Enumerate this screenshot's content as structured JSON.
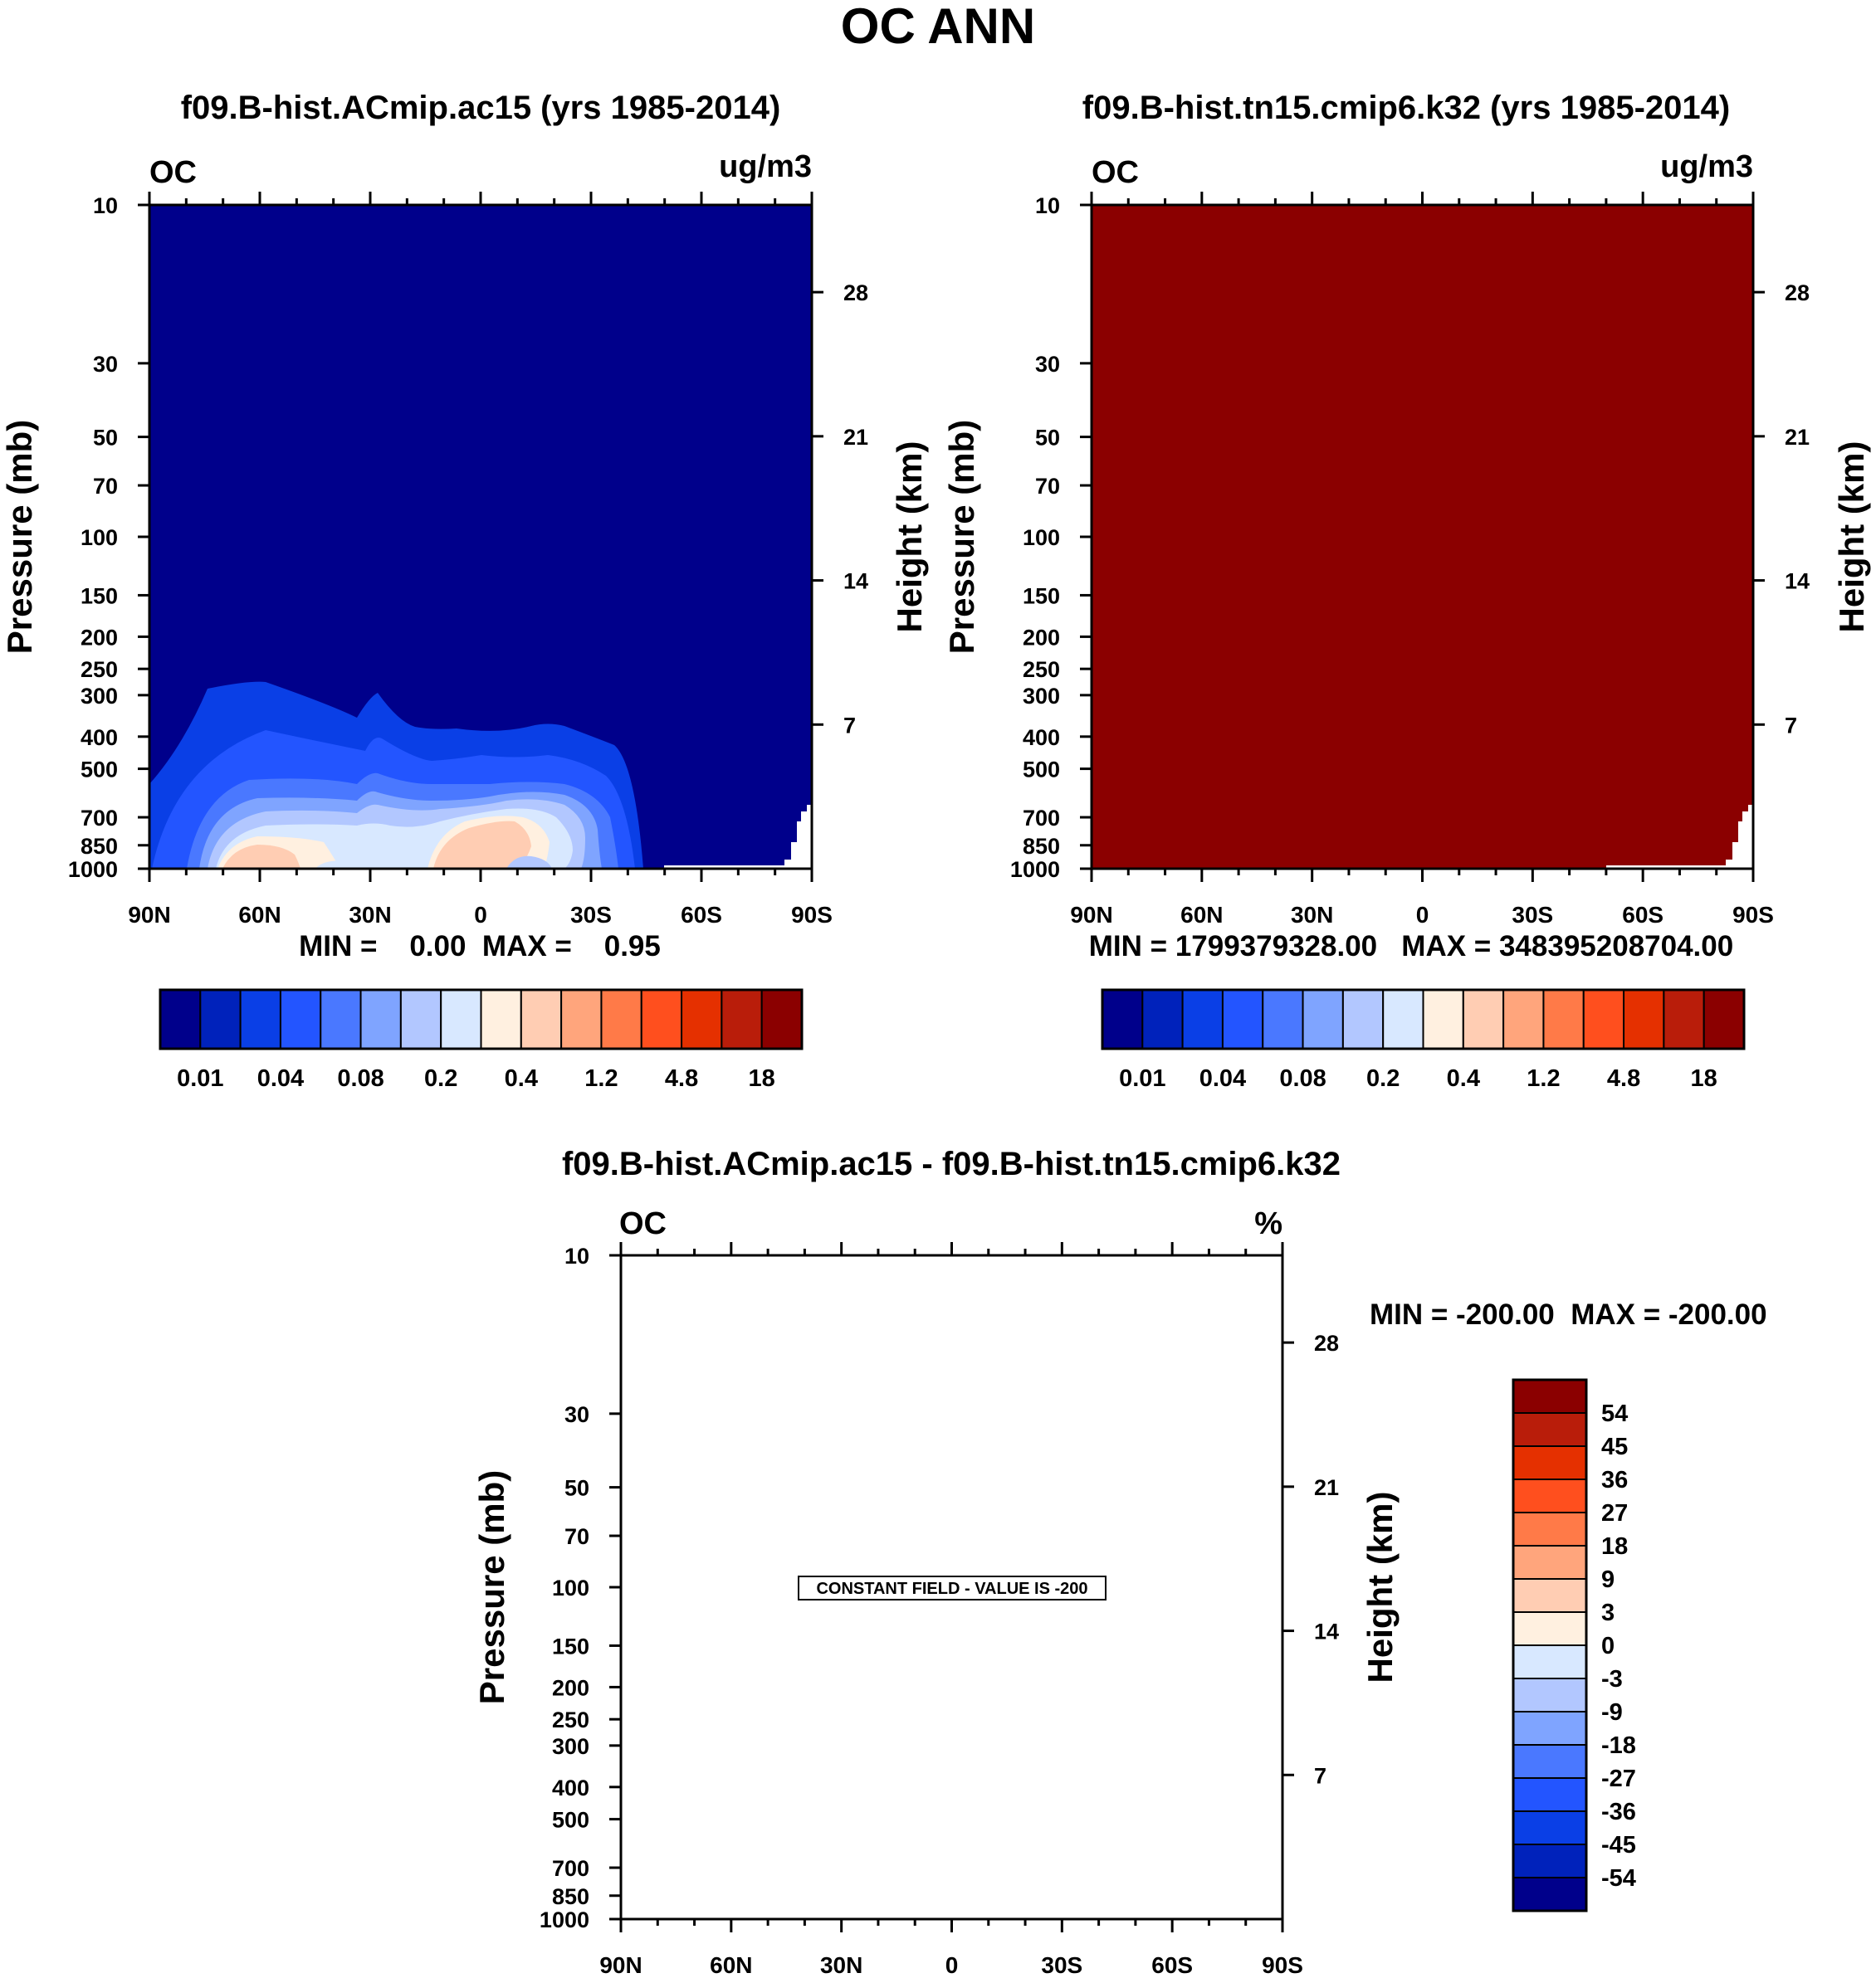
{
  "figure_title": "OC ANN",
  "colors": {
    "palette16": [
      "#00008b",
      "#0022bb",
      "#0a3fe6",
      "#2355ff",
      "#4a78ff",
      "#7fa4ff",
      "#b2c7ff",
      "#d8e8ff",
      "#fff0e0",
      "#ffcdb3",
      "#ffa57c",
      "#ff7a48",
      "#ff4f1e",
      "#e53000",
      "#b91d0a",
      "#8b0000"
    ],
    "low_plot_background": "#00008b",
    "high_plot_background": "#8b0000",
    "diff_background": "#ffffff"
  },
  "panels": {
    "p1": {
      "title": "f09.B-hist.ACmip.ac15 (yrs 1985-2014)",
      "var_label": "OC",
      "units": "ug/m3",
      "minmax": "MIN =    0.00  MAX =    0.95"
    },
    "p2": {
      "title": "f09.B-hist.tn15.cmip6.k32 (yrs 1985-2014)",
      "var_label": "OC",
      "units": "ug/m3",
      "minmax": "MIN = 1799379328.00   MAX = 348395208704.00"
    },
    "p3": {
      "title": "f09.B-hist.ACmip.ac15 - f09.B-hist.tn15.cmip6.k32",
      "var_label": "OC",
      "units": "%",
      "minmax": "MIN = -200.00  MAX = -200.00",
      "constant_note": "CONSTANT FIELD - VALUE IS -200"
    }
  },
  "axes": {
    "left_label": "Pressure (mb)",
    "right_label": "Height (km)",
    "pressure_ticks": [
      "10",
      "30",
      "50",
      "70",
      "100",
      "150",
      "200",
      "250",
      "300",
      "400",
      "500",
      "700",
      "850",
      "1000"
    ],
    "height_ticks": [
      "28",
      "21",
      "14",
      "7"
    ],
    "lat_ticks": [
      "90N",
      "60N",
      "30N",
      "0",
      "30S",
      "60S",
      "90S"
    ]
  },
  "colorbar_top": {
    "labels": [
      "0.01",
      "0.04",
      "0.08",
      "0.2",
      "0.4",
      "1.2",
      "4.8",
      "18"
    ]
  },
  "colorbar_diff": {
    "labels": [
      "54",
      "45",
      "36",
      "27",
      "18",
      "9",
      "3",
      "0",
      "-3",
      "-9",
      "-18",
      "-27",
      "-36",
      "-45",
      "-54"
    ]
  },
  "chart_data": [
    {
      "type": "heatmap",
      "title": "f09.B-hist.ACmip.ac15 (yrs 1985-2014)",
      "variable": "OC",
      "units": "ug/m3",
      "xlabel": "",
      "ylabel": "Pressure (mb)",
      "ylabel_right": "Height (km)",
      "x_ticks": [
        "90N",
        "60N",
        "30N",
        "0",
        "30S",
        "60S",
        "90S"
      ],
      "x_values": [
        90,
        60,
        30,
        0,
        -30,
        -60,
        -90
      ],
      "y_scale": "log",
      "y_range_mb": [
        10,
        1000
      ],
      "y_ticks_mb": [
        10,
        30,
        50,
        70,
        100,
        150,
        200,
        250,
        300,
        400,
        500,
        700,
        850,
        1000
      ],
      "y_right_ticks_km": [
        28,
        21,
        14,
        7
      ],
      "min": 0.0,
      "max": 0.95,
      "contour_levels": [
        0.005,
        0.01,
        0.02,
        0.04,
        0.06,
        0.08,
        0.1,
        0.2,
        0.3,
        0.4,
        0.6,
        1.2,
        2.4,
        4.8,
        9,
        18
      ]
    },
    {
      "type": "heatmap",
      "title": "f09.B-hist.tn15.cmip6.k32 (yrs 1985-2014)",
      "variable": "OC",
      "units": "ug/m3",
      "ylabel": "Pressure (mb)",
      "ylabel_right": "Height (km)",
      "x_ticks": [
        "90N",
        "60N",
        "30N",
        "0",
        "30S",
        "60S",
        "90S"
      ],
      "y_scale": "log",
      "y_range_mb": [
        10,
        1000
      ],
      "min": 1799379328.0,
      "max": 348395208704.0
    },
    {
      "type": "heatmap",
      "title": "f09.B-hist.ACmip.ac15 - f09.B-hist.tn15.cmip6.k32",
      "variable": "OC",
      "units": "%",
      "ylabel": "Pressure (mb)",
      "ylabel_right": "Height (km)",
      "x_ticks": [
        "90N",
        "60N",
        "30N",
        "0",
        "30S",
        "60S",
        "90S"
      ],
      "y_scale": "log",
      "y_range_mb": [
        10,
        1000
      ],
      "min": -200.0,
      "max": -200.0,
      "constant_value": -200,
      "contour_levels": [
        54,
        45,
        36,
        27,
        18,
        9,
        3,
        0,
        -3,
        -9,
        -18,
        -27,
        -36,
        -45,
        -54
      ]
    }
  ]
}
